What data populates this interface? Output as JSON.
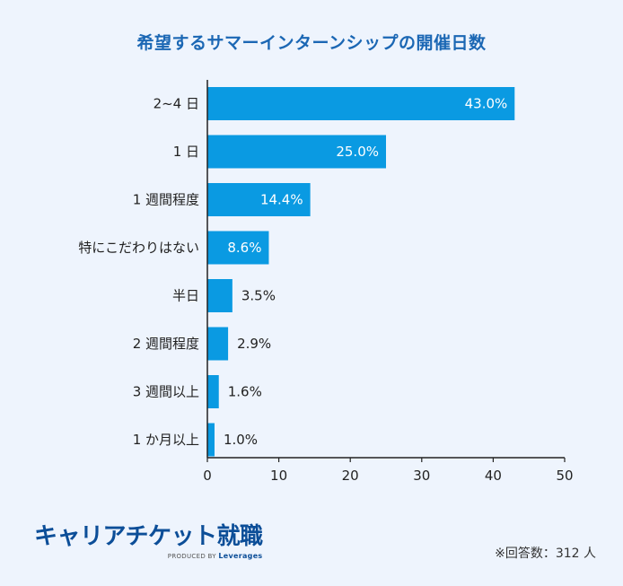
{
  "chart_data": {
    "type": "bar",
    "orientation": "horizontal",
    "title": "希望するサマーインターンシップの開催日数",
    "categories": [
      "2~4 日",
      "1 日",
      "1 週間程度",
      "特にこだわりはない",
      "半日",
      "2 週間程度",
      "3 週間以上",
      "1 か月以上"
    ],
    "values": [
      43.0,
      25.0,
      14.4,
      8.6,
      3.5,
      2.9,
      1.6,
      1.0
    ],
    "value_labels": [
      "43.0%",
      "25.0%",
      "14.4%",
      "8.6%",
      "3.5%",
      "2.9%",
      "1.6%",
      "1.0%"
    ],
    "xlim": [
      0,
      50
    ],
    "x_ticks": [
      "0",
      "10",
      "20",
      "30",
      "40",
      "50"
    ],
    "bar_color": "#0a9ae2",
    "grid": false
  },
  "brand": {
    "name": "キャリアチケット就職",
    "produced_by": "PRODUCED BY",
    "company": "Leverages",
    "color": "#0c4e98"
  },
  "footnote": "※回答数：312 人"
}
